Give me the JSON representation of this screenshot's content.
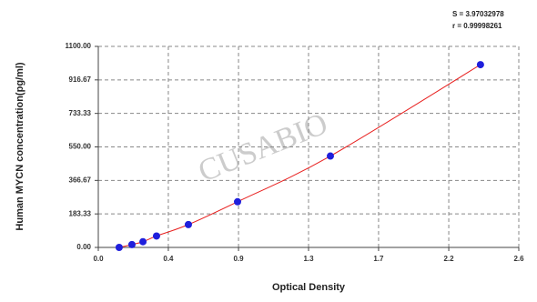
{
  "chart_data": {
    "type": "scatter",
    "xlabel": "Optical Density",
    "ylabel": "Human MYCN concentration(pg/ml)",
    "annotations": [
      "S = 3.97032978",
      "r = 0.99998261"
    ],
    "watermark": "CUSABIO",
    "series": [
      {
        "color": "#1f1fdc",
        "line_color": "#e8201f",
        "x": [
          0.129,
          0.208,
          0.276,
          0.36,
          0.557,
          0.861,
          1.435,
          2.363
        ],
        "values": [
          0,
          15.6,
          31.25,
          62.5,
          125,
          250,
          500,
          1000
        ]
      }
    ],
    "xlim": [
      0,
      2.6
    ],
    "ylim": [
      0,
      1100
    ],
    "xticks": [
      {
        "value": 0,
        "label": "0.0"
      },
      {
        "value": 0.433,
        "label": "0.4"
      },
      {
        "value": 0.867,
        "label": "0.9"
      },
      {
        "value": 1.3,
        "label": "1.3"
      },
      {
        "value": 1.733,
        "label": "1.7"
      },
      {
        "value": 2.167,
        "label": "2.2"
      },
      {
        "value": 2.6,
        "label": "2.6"
      }
    ],
    "yticks": [
      {
        "value": 0,
        "label": "0.00"
      },
      {
        "value": 183.33,
        "label": "183.33"
      },
      {
        "value": 366.67,
        "label": "366.67"
      },
      {
        "value": 550,
        "label": "550.00"
      },
      {
        "value": 733.33,
        "label": "733.33"
      },
      {
        "value": 916.67,
        "label": "916.67"
      },
      {
        "value": 1100,
        "label": "1100.00"
      }
    ],
    "grid": true
  }
}
